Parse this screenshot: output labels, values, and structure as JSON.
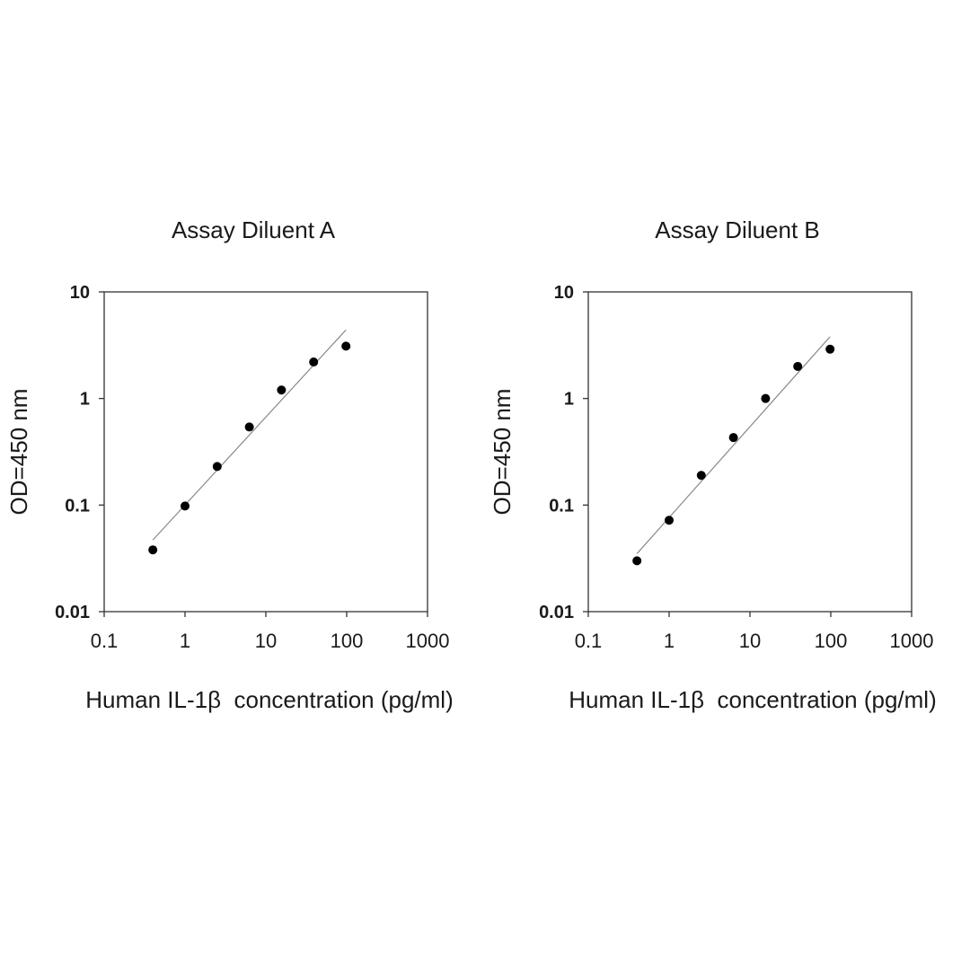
{
  "chart_data": [
    {
      "type": "scatter",
      "title": "Assay Diluent A",
      "xlabel": "Human IL-1β  concentration (pg/ml)",
      "ylabel": "OD=450 nm",
      "xscale": "log",
      "yscale": "log",
      "xlim": [
        0.1,
        1000
      ],
      "ylim": [
        0.01,
        10
      ],
      "xticks": [
        "0.1",
        "1",
        "10",
        "100",
        "1000"
      ],
      "yticks": [
        "0.01",
        "0.1",
        "1",
        "10"
      ],
      "grid": false,
      "series": [
        {
          "x": [
            0.4,
            1,
            2.5,
            6.25,
            15.6,
            39,
            98
          ],
          "y": [
            0.038,
            0.098,
            0.23,
            0.54,
            1.2,
            2.2,
            3.1
          ]
        }
      ],
      "fit_line": {
        "x": [
          0.4,
          98
        ],
        "y": [
          0.047,
          4.4
        ]
      }
    },
    {
      "type": "scatter",
      "title": "Assay Diluent B",
      "xlabel": "Human IL-1β  concentration (pg/ml)",
      "ylabel": "OD=450 nm",
      "xscale": "log",
      "yscale": "log",
      "xlim": [
        0.1,
        1000
      ],
      "ylim": [
        0.01,
        10
      ],
      "xticks": [
        "0.1",
        "1",
        "10",
        "100",
        "1000"
      ],
      "yticks": [
        "0.01",
        "0.1",
        "1",
        "10"
      ],
      "grid": false,
      "series": [
        {
          "x": [
            0.4,
            1,
            2.5,
            6.25,
            15.6,
            39,
            98
          ],
          "y": [
            0.03,
            0.072,
            0.19,
            0.43,
            1.0,
            2.0,
            2.9
          ]
        }
      ],
      "fit_line": {
        "x": [
          0.4,
          98
        ],
        "y": [
          0.035,
          3.8
        ]
      }
    }
  ]
}
